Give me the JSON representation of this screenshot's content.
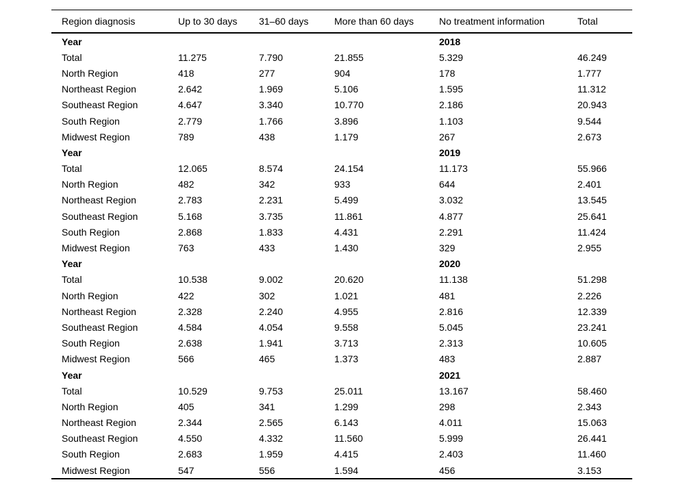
{
  "table": {
    "columns": [
      "Region diagnosis",
      "Up to 30 days",
      "31–60 days",
      "More than 60 days",
      "No treatment information",
      "Total"
    ],
    "year_label": "Year",
    "groups": [
      {
        "year": "2018",
        "rows": [
          {
            "region": "Total",
            "values": [
              "11.275",
              "7.790",
              "21.855",
              "5.329",
              "46.249"
            ]
          },
          {
            "region": "North Region",
            "values": [
              "418",
              "277",
              "904",
              "178",
              "1.777"
            ]
          },
          {
            "region": "Northeast Region",
            "values": [
              "2.642",
              "1.969",
              "5.106",
              "1.595",
              "11.312"
            ]
          },
          {
            "region": "Southeast Region",
            "values": [
              "4.647",
              "3.340",
              "10.770",
              "2.186",
              "20.943"
            ]
          },
          {
            "region": "South Region",
            "values": [
              "2.779",
              "1.766",
              "3.896",
              "1.103",
              "9.544"
            ]
          },
          {
            "region": "Midwest Region",
            "values": [
              "789",
              "438",
              "1.179",
              "267",
              "2.673"
            ]
          }
        ]
      },
      {
        "year": "2019",
        "rows": [
          {
            "region": "Total",
            "values": [
              "12.065",
              "8.574",
              "24.154",
              "11.173",
              "55.966"
            ]
          },
          {
            "region": "North Region",
            "values": [
              "482",
              "342",
              "933",
              "644",
              "2.401"
            ]
          },
          {
            "region": "Northeast Region",
            "values": [
              "2.783",
              "2.231",
              "5.499",
              "3.032",
              "13.545"
            ]
          },
          {
            "region": "Southeast Region",
            "values": [
              "5.168",
              "3.735",
              "11.861",
              "4.877",
              "25.641"
            ]
          },
          {
            "region": "South Region",
            "values": [
              "2.868",
              "1.833",
              "4.431",
              "2.291",
              "11.424"
            ]
          },
          {
            "region": "Midwest Region",
            "values": [
              "763",
              "433",
              "1.430",
              "329",
              "2.955"
            ]
          }
        ]
      },
      {
        "year": "2020",
        "rows": [
          {
            "region": "Total",
            "values": [
              "10.538",
              "9.002",
              "20.620",
              "11.138",
              "51.298"
            ]
          },
          {
            "region": "North Region",
            "values": [
              "422",
              "302",
              "1.021",
              "481",
              "2.226"
            ]
          },
          {
            "region": "Northeast Region",
            "values": [
              "2.328",
              "2.240",
              "4.955",
              "2.816",
              "12.339"
            ]
          },
          {
            "region": "Southeast Region",
            "values": [
              "4.584",
              "4.054",
              "9.558",
              "5.045",
              "23.241"
            ]
          },
          {
            "region": "South Region",
            "values": [
              "2.638",
              "1.941",
              "3.713",
              "2.313",
              "10.605"
            ]
          },
          {
            "region": "Midwest Region",
            "values": [
              "566",
              "465",
              "1.373",
              "483",
              "2.887"
            ]
          }
        ]
      },
      {
        "year": "2021",
        "rows": [
          {
            "region": "Total",
            "values": [
              "10.529",
              "9.753",
              "25.011",
              "13.167",
              "58.460"
            ]
          },
          {
            "region": "North Region",
            "values": [
              "405",
              "341",
              "1.299",
              "298",
              "2.343"
            ]
          },
          {
            "region": "Northeast Region",
            "values": [
              "2.344",
              "2.565",
              "6.143",
              "4.011",
              "15.063"
            ]
          },
          {
            "region": "Southeast Region",
            "values": [
              "4.550",
              "4.332",
              "11.560",
              "5.999",
              "26.441"
            ]
          },
          {
            "region": "South Region",
            "values": [
              "2.683",
              "1.959",
              "4.415",
              "2.403",
              "11.460"
            ]
          },
          {
            "region": "Midwest Region",
            "values": [
              "547",
              "556",
              "1.594",
              "456",
              "3.153"
            ]
          }
        ]
      }
    ]
  }
}
